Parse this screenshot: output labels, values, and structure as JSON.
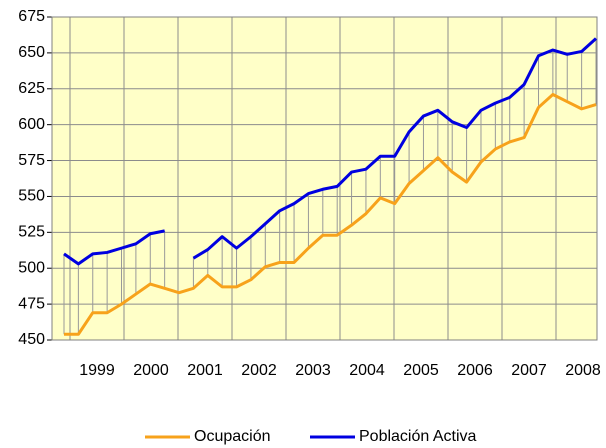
{
  "chart_data": {
    "type": "line",
    "xtick_labels": [
      "1999",
      "2000",
      "2001",
      "2002",
      "2003",
      "2004",
      "2005",
      "2006",
      "2007",
      "2008"
    ],
    "series": [
      {
        "name": "Ocupación",
        "color": "#f7a21b",
        "values": [
          454,
          454,
          469,
          469,
          475,
          482,
          489,
          486,
          483,
          486,
          495,
          487,
          487,
          492,
          501,
          504,
          504,
          514,
          523,
          523,
          530,
          538,
          549,
          545,
          559,
          568,
          577,
          567,
          560,
          574,
          583,
          588,
          591,
          612,
          621,
          616,
          611,
          614
        ]
      },
      {
        "name": "Población Activa",
        "color": "#0000e0",
        "values": [
          510,
          503,
          510,
          511,
          514,
          517,
          524,
          526,
          null,
          507,
          513,
          522,
          514,
          522,
          531,
          540,
          545,
          552,
          555,
          557,
          567,
          569,
          578,
          578,
          595,
          606,
          610,
          602,
          598,
          610,
          615,
          619,
          628,
          648,
          652,
          649,
          651,
          660
        ]
      }
    ],
    "ylim": [
      450,
      675
    ],
    "yticks": [
      450,
      475,
      500,
      525,
      550,
      575,
      600,
      625,
      650,
      675
    ],
    "grid": true,
    "legend": "bottom",
    "plot_background": "#ffffc8"
  }
}
